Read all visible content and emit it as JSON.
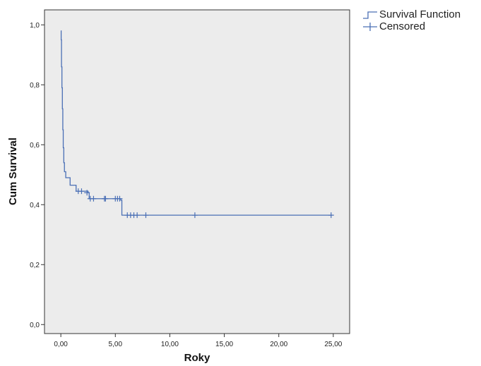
{
  "chart_data": {
    "type": "line",
    "xlabel": "Roky",
    "ylabel": "Cum Survival",
    "xlim": [
      -1.5,
      26.5
    ],
    "ylim": [
      -0.03,
      1.05
    ],
    "x_ticks": [
      {
        "value": 0,
        "label": "0,00"
      },
      {
        "value": 5,
        "label": "5,00"
      },
      {
        "value": 10,
        "label": "10,00"
      },
      {
        "value": 15,
        "label": "15,00"
      },
      {
        "value": 20,
        "label": "20,00"
      },
      {
        "value": 25,
        "label": "25,00"
      }
    ],
    "y_ticks": [
      {
        "value": 0,
        "label": "0,0"
      },
      {
        "value": 0.2,
        "label": "0,2"
      },
      {
        "value": 0.4,
        "label": "0,4"
      },
      {
        "value": 0.6,
        "label": "0,6"
      },
      {
        "value": 0.8,
        "label": "0,8"
      },
      {
        "value": 1.0,
        "label": "1,0"
      }
    ],
    "grid": false,
    "legend_position": "top-right, outside plot",
    "colors": {
      "line": "#4a6fb5",
      "plot_background": "#ececec",
      "axis": "#333333"
    },
    "series": [
      {
        "name": "Survival Function",
        "step_points": [
          [
            0,
            0.98
          ],
          [
            0.03,
            0.95
          ],
          [
            0.06,
            0.86
          ],
          [
            0.1,
            0.79
          ],
          [
            0.14,
            0.72
          ],
          [
            0.18,
            0.65
          ],
          [
            0.22,
            0.59
          ],
          [
            0.27,
            0.54
          ],
          [
            0.33,
            0.51
          ],
          [
            0.45,
            0.49
          ],
          [
            0.85,
            0.465
          ],
          [
            1.4,
            0.445
          ],
          [
            2.5,
            0.44
          ],
          [
            2.6,
            0.42
          ],
          [
            5.5,
            0.415
          ],
          [
            5.6,
            0.365
          ],
          [
            24.9,
            0.365
          ]
        ]
      },
      {
        "name": "Censored",
        "points": [
          [
            1.6,
            0.445
          ],
          [
            1.9,
            0.445
          ],
          [
            2.4,
            0.44
          ],
          [
            2.7,
            0.42
          ],
          [
            3.0,
            0.42
          ],
          [
            4.0,
            0.42
          ],
          [
            4.1,
            0.42
          ],
          [
            5.0,
            0.42
          ],
          [
            5.2,
            0.42
          ],
          [
            5.4,
            0.42
          ],
          [
            6.1,
            0.365
          ],
          [
            6.4,
            0.365
          ],
          [
            6.7,
            0.365
          ],
          [
            7.0,
            0.365
          ],
          [
            7.8,
            0.365
          ],
          [
            12.3,
            0.365
          ],
          [
            24.8,
            0.365
          ]
        ]
      }
    ]
  },
  "legend": {
    "items": [
      {
        "label": "Survival Function",
        "icon": "step-line-icon"
      },
      {
        "label": "Censored",
        "icon": "plus-marker-icon"
      }
    ]
  }
}
